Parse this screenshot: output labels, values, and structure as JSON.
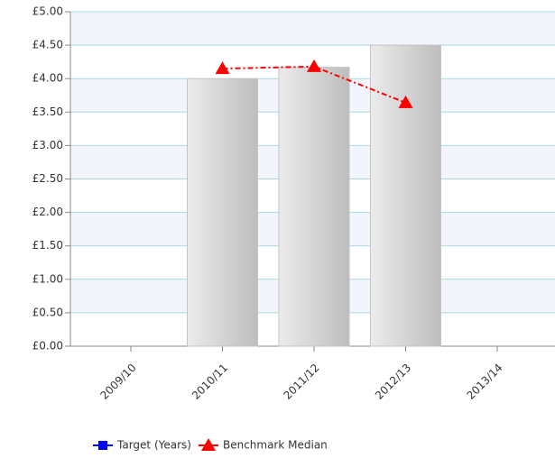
{
  "chart_data": {
    "type": "bar",
    "categories": [
      "2009/10",
      "2010/11",
      "2011/12",
      "2012/13",
      "2013/14"
    ],
    "bars": {
      "color": "#d0d0d0",
      "values": [
        null,
        4.0,
        4.17,
        4.5,
        null
      ]
    },
    "series": [
      {
        "name": "Target (Years)",
        "color": "#0000ff",
        "marker": "square",
        "values": [
          null,
          null,
          null,
          null,
          null
        ]
      },
      {
        "name": "Benchmark Median",
        "color": "#ff0000",
        "marker": "triangle",
        "values": [
          null,
          4.15,
          4.18,
          3.64,
          null
        ]
      }
    ],
    "ylim": [
      0,
      5
    ],
    "yticks": [
      {
        "value": 0,
        "label": "£0.00"
      },
      {
        "value": 0.5,
        "label": "£0.50"
      },
      {
        "value": 1,
        "label": "£1.00"
      },
      {
        "value": 1.5,
        "label": "£1.50"
      },
      {
        "value": 2,
        "label": "£2.00"
      },
      {
        "value": 2.5,
        "label": "£2.50"
      },
      {
        "value": 3,
        "label": "£3.00"
      },
      {
        "value": 3.5,
        "label": "£3.50"
      },
      {
        "value": 4,
        "label": "£4.00"
      },
      {
        "value": 4.5,
        "label": "£4.50"
      },
      {
        "value": 5,
        "label": "£5.00"
      }
    ],
    "grid": true,
    "legend": "bottom"
  }
}
